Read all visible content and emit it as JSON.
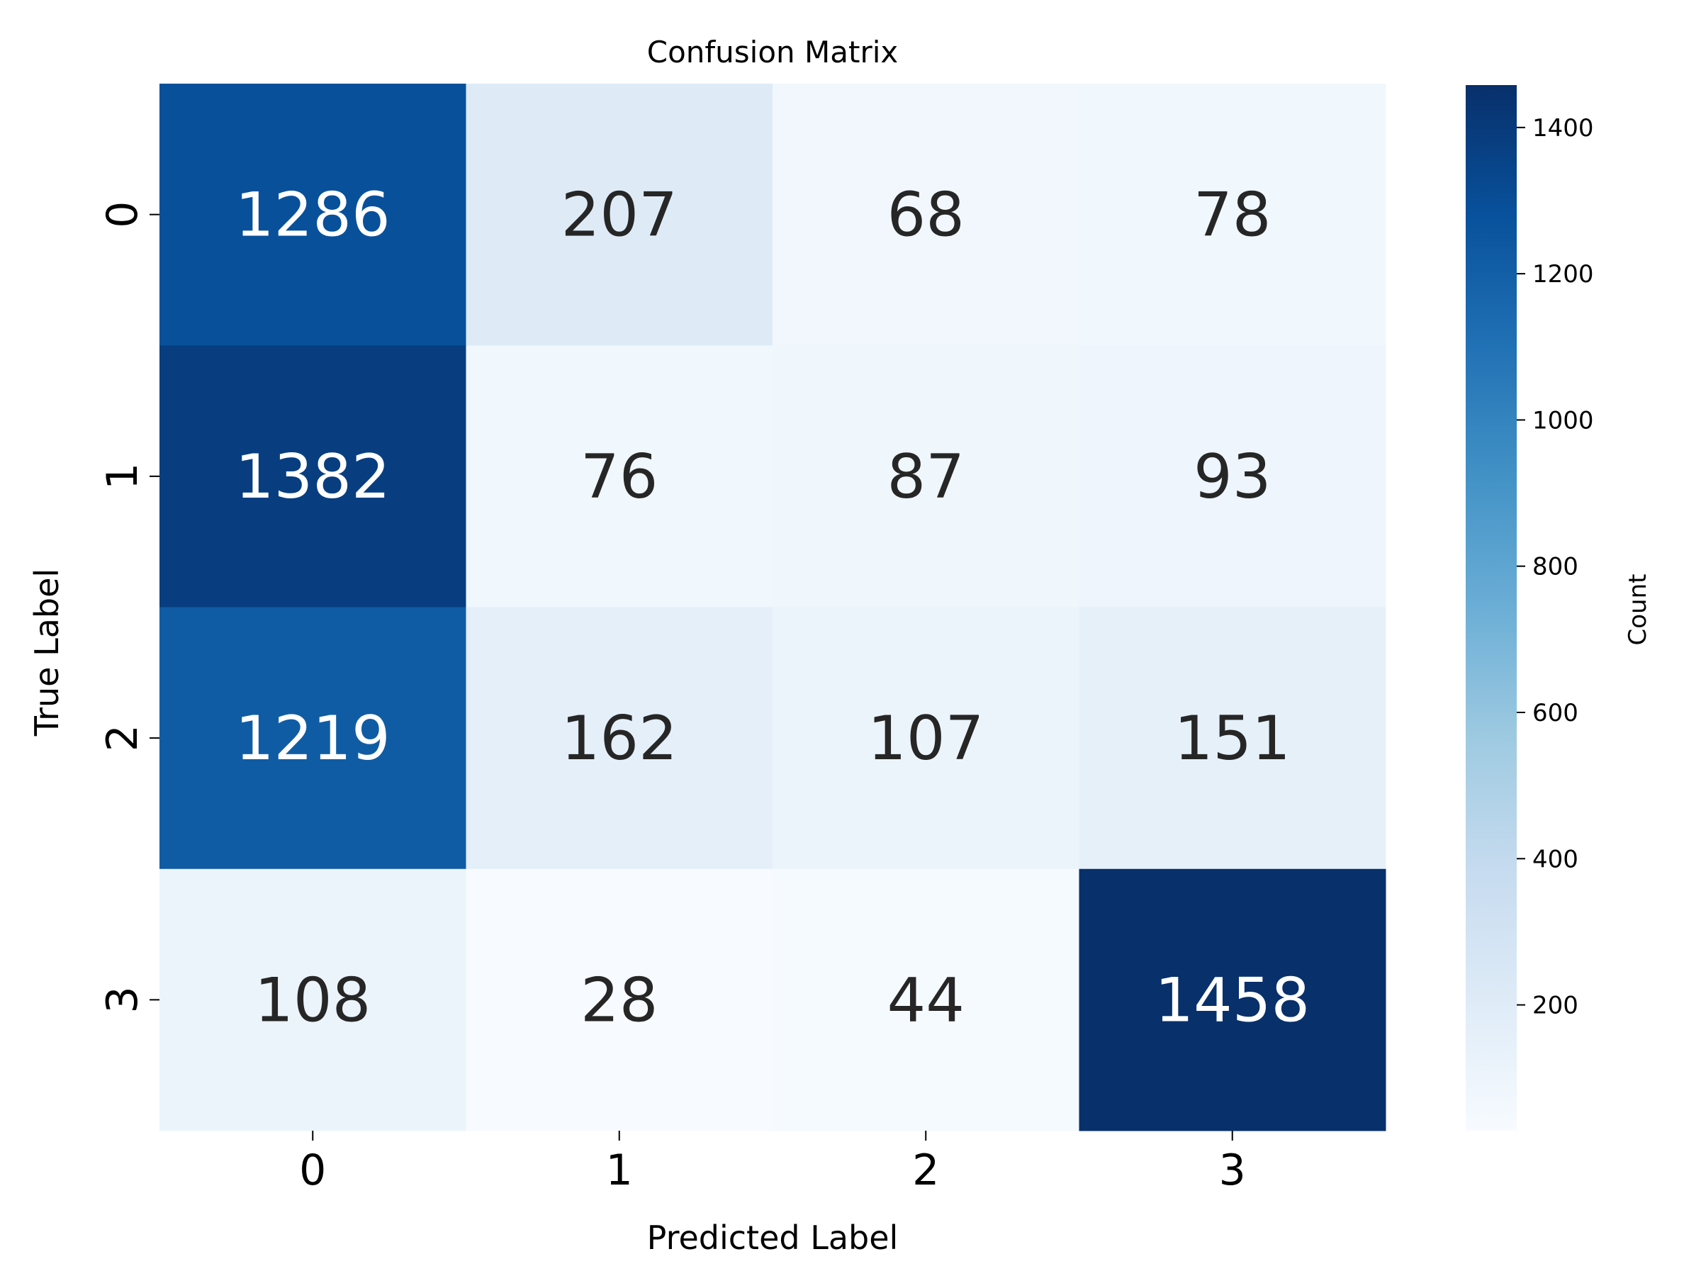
{
  "chart_data": {
    "type": "heatmap",
    "title": "Confusion Matrix",
    "xlabel": "Predicted Label",
    "ylabel": "True Label",
    "x_categories": [
      "0",
      "1",
      "2",
      "3"
    ],
    "y_categories": [
      "0",
      "1",
      "2",
      "3"
    ],
    "values": [
      [
        1286,
        207,
        68,
        78
      ],
      [
        1382,
        76,
        87,
        93
      ],
      [
        1219,
        162,
        107,
        151
      ],
      [
        108,
        28,
        44,
        1458
      ]
    ],
    "colormap": "Blues",
    "colorbar": {
      "label": "Count",
      "range": [
        28,
        1458
      ],
      "ticks": [
        200,
        400,
        600,
        800,
        1000,
        1200,
        1400
      ]
    }
  }
}
